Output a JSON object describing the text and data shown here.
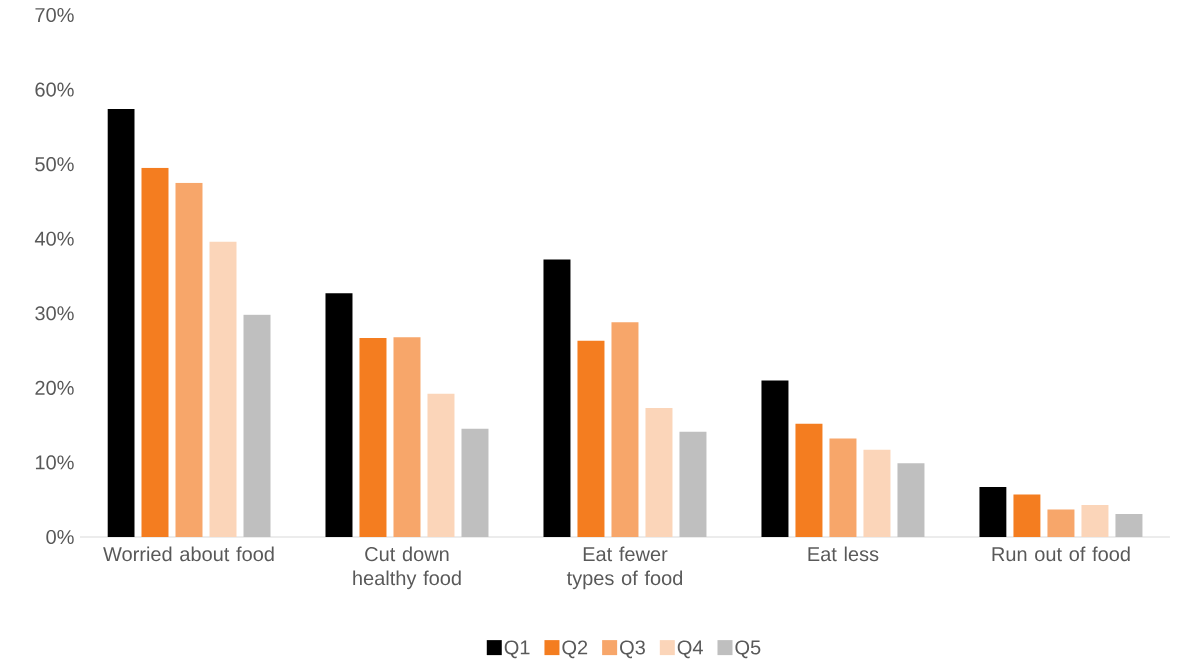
{
  "chart_data": {
    "type": "bar",
    "categories": [
      "Worried about food",
      "Cut down healthy food",
      "Eat fewer types of food",
      "Eat less",
      "Run out of food"
    ],
    "series": [
      {
        "name": "Q1",
        "color": "#000000",
        "values": [
          57.4,
          32.7,
          37.2,
          21.0,
          6.7
        ]
      },
      {
        "name": "Q2",
        "color": "#f47d20",
        "values": [
          49.5,
          26.7,
          26.3,
          15.2,
          5.7
        ]
      },
      {
        "name": "Q3",
        "color": "#f7a66a",
        "values": [
          47.5,
          26.8,
          28.8,
          13.2,
          3.7
        ]
      },
      {
        "name": "Q4",
        "color": "#fbd5b9",
        "values": [
          39.6,
          19.2,
          17.3,
          11.7,
          4.3
        ]
      },
      {
        "name": "Q5",
        "color": "#bfbfbf",
        "values": [
          29.8,
          14.5,
          14.1,
          9.9,
          3.1
        ]
      }
    ],
    "ylim": [
      0,
      70
    ],
    "yticks": [
      {
        "value": 0,
        "label": "0%"
      },
      {
        "value": 10,
        "label": "10%"
      },
      {
        "value": 20,
        "label": "20%"
      },
      {
        "value": 30,
        "label": "30%"
      },
      {
        "value": 40,
        "label": "40%"
      },
      {
        "value": 50,
        "label": "50%"
      },
      {
        "value": 60,
        "label": "60%"
      },
      {
        "value": 70,
        "label": "70%"
      }
    ],
    "legend": "bottom"
  }
}
